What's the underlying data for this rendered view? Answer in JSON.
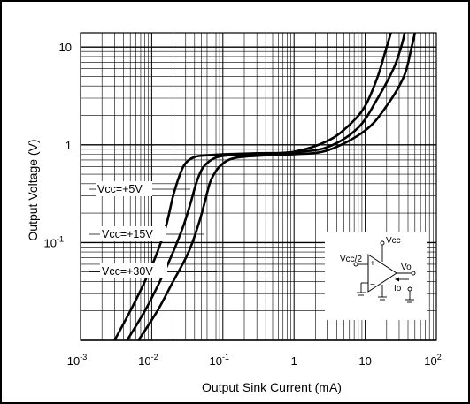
{
  "chart_data": {
    "type": "line",
    "xlabel": "Output Sink Current   (mA)",
    "ylabel": "Output Voltage  (V)",
    "x_scale": "log",
    "y_scale": "log",
    "xlim": [
      0.001,
      100
    ],
    "ylim": [
      0.01,
      14
    ],
    "x_ticks": [
      {
        "value": 0.001,
        "base": "10",
        "exp": "-3"
      },
      {
        "value": 0.01,
        "base": "10",
        "exp": "-2"
      },
      {
        "value": 0.1,
        "base": "10",
        "exp": "-1"
      },
      {
        "value": 1,
        "base": "1",
        "exp": ""
      },
      {
        "value": 10,
        "base": "10",
        "exp": ""
      },
      {
        "value": 100,
        "base": "10",
        "exp": "2"
      }
    ],
    "y_ticks": [
      {
        "value": 10,
        "base": "10",
        "exp": ""
      },
      {
        "value": 1,
        "base": "1",
        "exp": ""
      },
      {
        "value": 0.1,
        "base": "10",
        "exp": "-1"
      }
    ],
    "grid": true,
    "series": [
      {
        "name": "Vcc=+5V",
        "x": [
          0.003,
          0.005,
          0.008,
          0.012,
          0.016,
          0.02,
          0.025,
          0.03,
          0.04,
          0.06,
          0.1,
          0.3,
          1,
          3,
          6,
          10,
          15,
          20,
          23
        ],
        "y": [
          0.01,
          0.02,
          0.04,
          0.08,
          0.15,
          0.3,
          0.5,
          0.65,
          0.75,
          0.78,
          0.8,
          0.82,
          0.85,
          1.1,
          1.6,
          2.5,
          5,
          10,
          14
        ]
      },
      {
        "name": "Vcc=+15V",
        "x": [
          0.0045,
          0.008,
          0.013,
          0.02,
          0.028,
          0.035,
          0.042,
          0.05,
          0.06,
          0.08,
          0.12,
          0.3,
          1,
          3,
          8,
          15,
          25,
          32,
          36
        ],
        "y": [
          0.01,
          0.02,
          0.04,
          0.08,
          0.15,
          0.25,
          0.4,
          0.55,
          0.65,
          0.74,
          0.78,
          0.8,
          0.84,
          0.95,
          1.5,
          3,
          6,
          10,
          14
        ]
      },
      {
        "name": "Vcc=+30V",
        "x": [
          0.0065,
          0.012,
          0.02,
          0.033,
          0.045,
          0.055,
          0.065,
          0.075,
          0.09,
          0.12,
          0.18,
          0.4,
          1,
          3,
          10,
          20,
          35,
          45,
          50
        ],
        "y": [
          0.01,
          0.02,
          0.04,
          0.08,
          0.15,
          0.25,
          0.4,
          0.5,
          0.6,
          0.7,
          0.75,
          0.78,
          0.8,
          0.88,
          1.4,
          2.5,
          5,
          10,
          14
        ]
      }
    ],
    "curve_labels": [
      "Vcc=+5V",
      "Vcc=+15V",
      "Vcc=+30V"
    ]
  },
  "inset": {
    "vcc": "Vcc",
    "vcc_half": "Vcc/2",
    "vo": "Vo",
    "io": "Io",
    "plus": "+",
    "minus": "−"
  }
}
